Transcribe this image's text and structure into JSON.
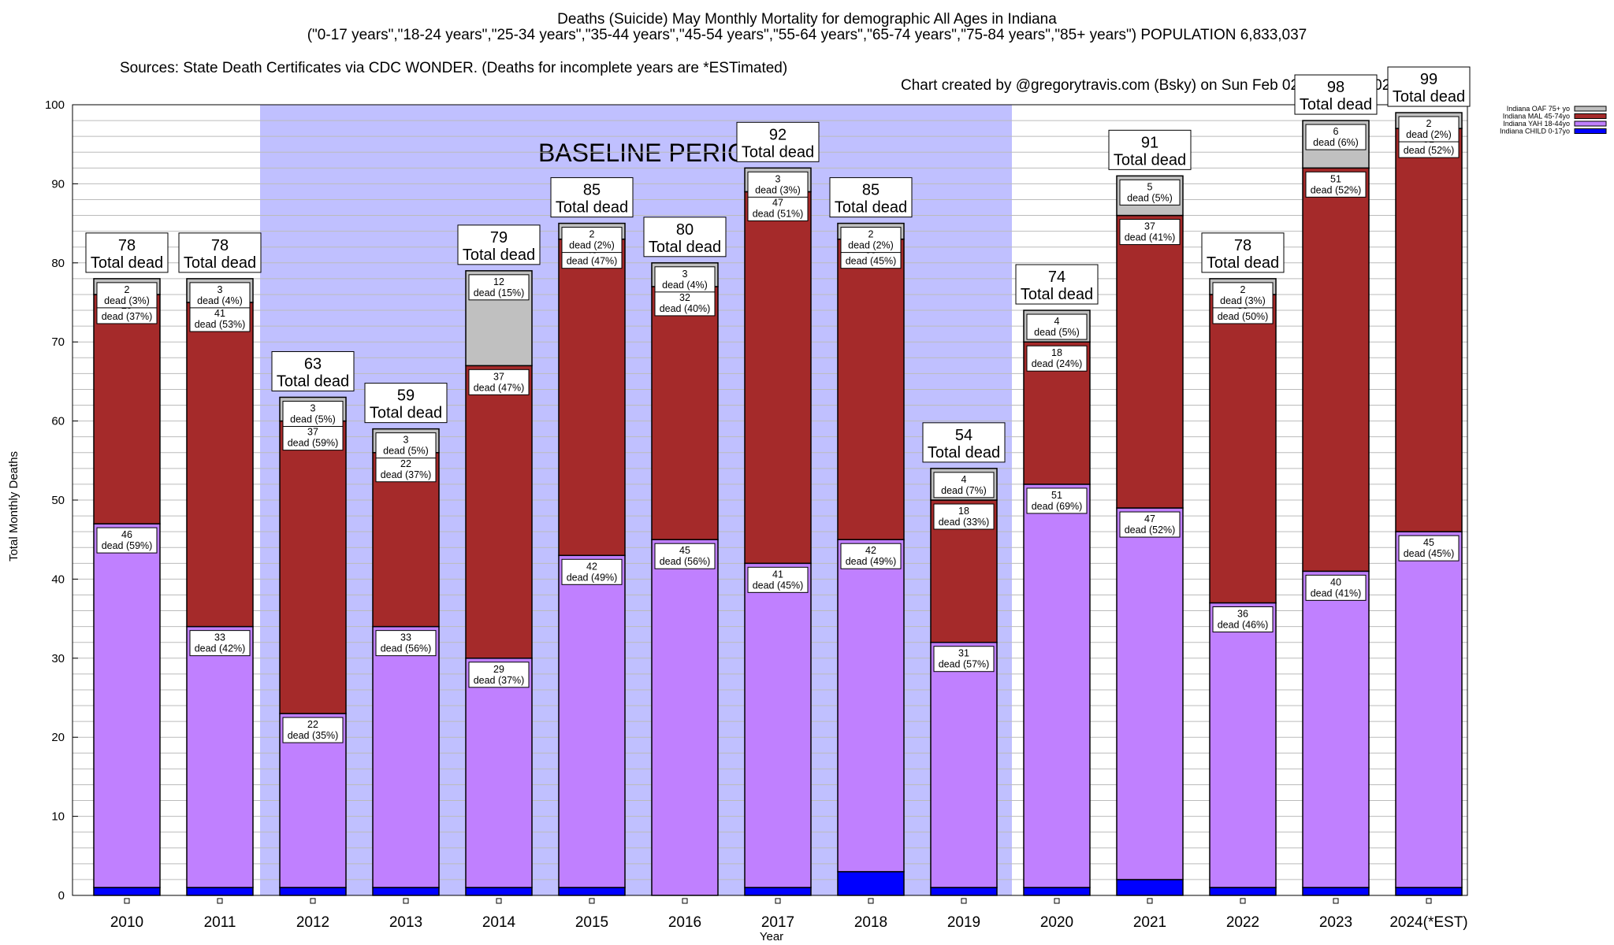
{
  "header": {
    "title": "Deaths (Suicide) May Monthly Mortality for demographic All Ages in Indiana",
    "subtitle": "(\"0-17 years\",\"18-24 years\",\"25-34 years\",\"35-44 years\",\"45-54 years\",\"55-64 years\",\"65-74 years\",\"75-84 years\",\"85+ years\") POPULATION 6,833,037",
    "sources": "Sources: State Death Certificates via CDC WONDER. (Deaths for incomplete years are *ESTimated)",
    "credit": "Chart created by @gregorytravis.com (Bsky) on Sun Feb 02 06:30:37 2025"
  },
  "chart_data": {
    "type": "bar",
    "stacked": true,
    "title": "Deaths (Suicide) May Monthly Mortality for demographic All Ages in Indiana",
    "xlabel": "Year",
    "ylabel": "Total Monthly Deaths",
    "ylim": [
      0,
      100
    ],
    "yticks": [
      0,
      10,
      20,
      30,
      40,
      50,
      60,
      70,
      80,
      90,
      100
    ],
    "grid": true,
    "legend_position": "top-right",
    "categories": [
      "2010",
      "2011",
      "2012",
      "2013",
      "2014",
      "2015",
      "2016",
      "2017",
      "2018",
      "2019",
      "2020",
      "2021",
      "2022",
      "2023",
      "2024(*EST)"
    ],
    "series": [
      {
        "name": "Indiana CHILD 0-17yo",
        "color": "#0000ff",
        "values": [
          1,
          1,
          1,
          1,
          1,
          1,
          0,
          1,
          3,
          1,
          1,
          2,
          1,
          1,
          1
        ]
      },
      {
        "name": "Indiana YAH 18-44yo",
        "color": "#c080ff",
        "values": [
          46,
          33,
          22,
          33,
          29,
          42,
          45,
          41,
          42,
          31,
          51,
          47,
          36,
          40,
          45
        ]
      },
      {
        "name": "Indiana MAL 45-74yo",
        "color": "#a52a2a",
        "values": [
          29,
          41,
          37,
          22,
          37,
          40,
          32,
          47,
          38,
          18,
          18,
          37,
          39,
          51,
          51
        ]
      },
      {
        "name": "Indiana OAF 75+ yo",
        "color": "#c0c0c0",
        "values": [
          2,
          3,
          3,
          3,
          12,
          2,
          3,
          3,
          2,
          4,
          4,
          5,
          2,
          6,
          2
        ]
      }
    ],
    "segment_labels": {
      "Indiana YAH 18-44yo": [
        "46\ndead (59%)",
        "33\ndead (42%)",
        "22\ndead (35%)",
        "33\ndead (56%)",
        "29\ndead (37%)",
        "42\ndead (49%)",
        "45\ndead (56%)",
        "41\ndead (45%)",
        "42\ndead (49%)",
        "31\ndead (57%)",
        "51\ndead (69%)",
        "47\ndead (52%)",
        "36\ndead (46%)",
        "40\ndead (41%)",
        "45\ndead (45%)"
      ],
      "Indiana MAL 45-74yo": [
        "29\ndead (37%)",
        "41\ndead (53%)",
        "37\ndead (59%)",
        "22\ndead (37%)",
        "37\ndead (47%)",
        "40\ndead (47%)",
        "32\ndead (40%)",
        "47\ndead (51%)",
        "38\ndead (45%)",
        "18\ndead (33%)",
        "18\ndead (24%)",
        "37\ndead (41%)",
        "39\ndead (50%)",
        "51\ndead (52%)",
        "51\ndead (52%)"
      ],
      "Indiana OAF 75+ yo": [
        "2\ndead (3%)",
        "3\ndead (4%)",
        "3\ndead (5%)",
        "3\ndead (5%)",
        "12\ndead (15%)",
        "2\ndead (2%)",
        "3\ndead (4%)",
        "3\ndead (3%)",
        "2\ndead (2%)",
        "4\ndead (7%)",
        "4\ndead (5%)",
        "5\ndead (5%)",
        "2\ndead (3%)",
        "6\ndead (6%)",
        "2\ndead (2%)"
      ]
    },
    "totals": [
      78,
      78,
      63,
      59,
      79,
      85,
      80,
      92,
      85,
      54,
      74,
      91,
      78,
      98,
      99
    ],
    "total_label_suffix": "Total dead",
    "annotations": [
      {
        "text": "BASELINE PERIOD",
        "x_range": [
          "2012",
          "2019"
        ],
        "color": "#c0c0ff"
      }
    ],
    "legend": [
      "Indiana OAF 75+ yo",
      "Indiana MAL 45-74yo",
      "Indiana YAH 18-44yo",
      "Indiana CHILD 0-17yo"
    ]
  }
}
